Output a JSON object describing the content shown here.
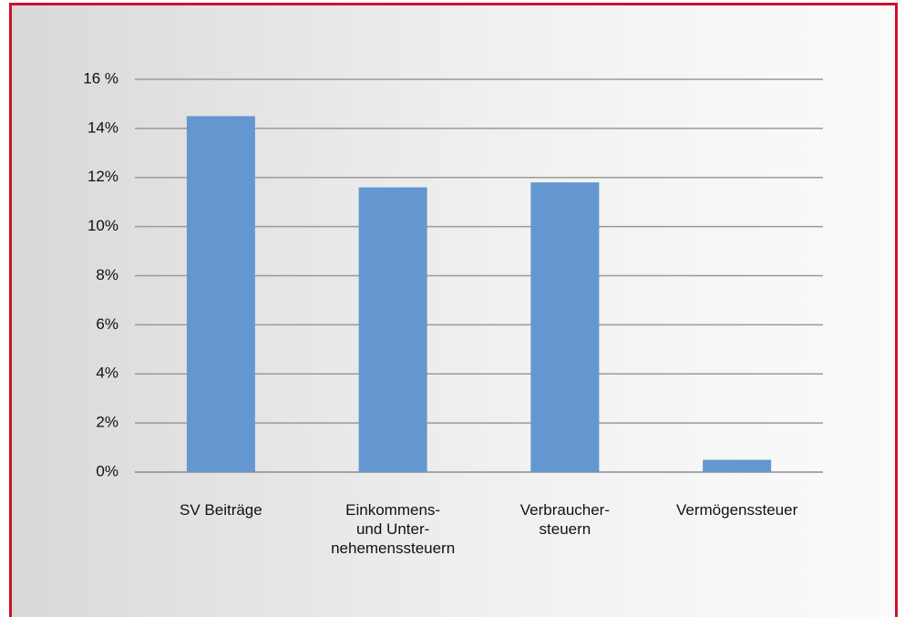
{
  "chart_data": {
    "type": "bar",
    "categories": [
      "SV Beiträge",
      "Einkommens-\nund Unter-\nnehemenssteuern",
      "Verbraucher-\nsteuern",
      "Vermögenssteuer"
    ],
    "values": [
      14.5,
      11.6,
      11.8,
      0.5
    ],
    "color": "#6497cf",
    "ylim": [
      0,
      16
    ],
    "yticks": [
      {
        "value": 0,
        "label": "0%"
      },
      {
        "value": 2,
        "label": "2%"
      },
      {
        "value": 4,
        "label": "4%"
      },
      {
        "value": 6,
        "label": "6%"
      },
      {
        "value": 8,
        "label": "8%"
      },
      {
        "value": 10,
        "label": "10%"
      },
      {
        "value": 12,
        "label": "12%"
      },
      {
        "value": 14,
        "label": "14%"
      },
      {
        "value": 16,
        "label": "16 %"
      }
    ],
    "grid": true
  }
}
